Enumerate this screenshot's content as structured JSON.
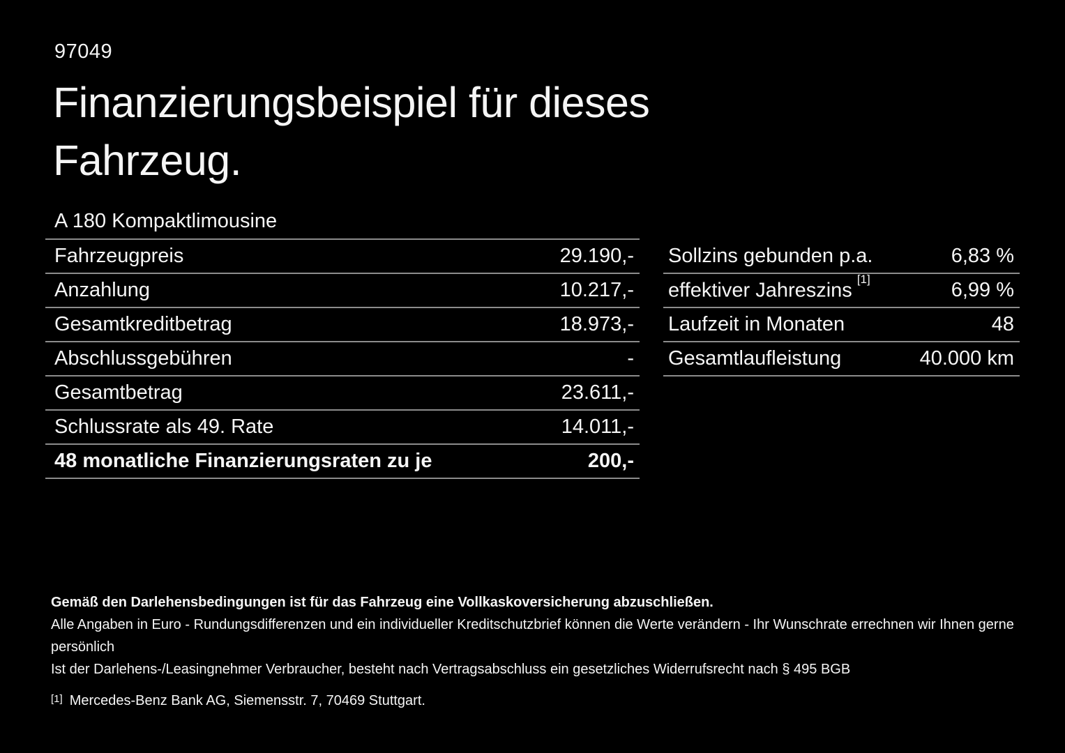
{
  "page": {
    "ref_number": "97049",
    "title_line1": "Finanzierungsbeispiel für dieses",
    "title_line2": "Fahrzeug.",
    "vehicle_model": "A 180 Kompaktlimousine"
  },
  "financing_table": {
    "rows": [
      {
        "label": "Fahrzeugpreis",
        "value": "29.190,-"
      },
      {
        "label": "Anzahlung",
        "value": "10.217,-"
      },
      {
        "label": "Gesamtkreditbetrag",
        "value": "18.973,-"
      },
      {
        "label": "Abschlussgebühren",
        "value": "-"
      },
      {
        "label": "Gesamtbetrag",
        "value": "23.611,-"
      },
      {
        "label": "Schlussrate als 49. Rate",
        "value": "14.011,-"
      },
      {
        "label": "48 monatliche Finanzierungsraten zu je",
        "value": "200,-"
      }
    ]
  },
  "conditions_table": {
    "rows": [
      {
        "label": "Sollzins gebunden p.a.",
        "footnote": "",
        "value": "6,83 %"
      },
      {
        "label": "effektiver Jahreszins",
        "footnote": "[1]",
        "value": "6,99 %"
      },
      {
        "label": "Laufzeit in Monaten",
        "footnote": "",
        "value": "48"
      },
      {
        "label": "Gesamtlaufleistung",
        "footnote": "",
        "value": "40.000 km"
      }
    ]
  },
  "footer": {
    "insurance_note": "Gemäß den Darlehensbedingungen ist für das Fahrzeug eine Vollkaskoversicherung abzuschließen.",
    "disclaimer1": "Alle Angaben in Euro - Rundungsdifferenzen und ein individueller Kreditschutzbrief können die Werte verändern - Ihr Wunschrate errechnen wir Ihnen gerne persönlich",
    "disclaimer2": "Ist der Darlehens-/Leasingnehmer Verbraucher, besteht nach Vertragsabschluss ein gesetzliches Widerrufsrecht nach § 495 BGB",
    "footnote_marker": "[1]",
    "footnote_text": "Mercedes-Benz Bank AG, Siemensstr. 7, 70469 Stuttgart."
  },
  "colors": {
    "background": "#000000",
    "text": "#f5f5f5",
    "divider": "#8c8c8c"
  }
}
